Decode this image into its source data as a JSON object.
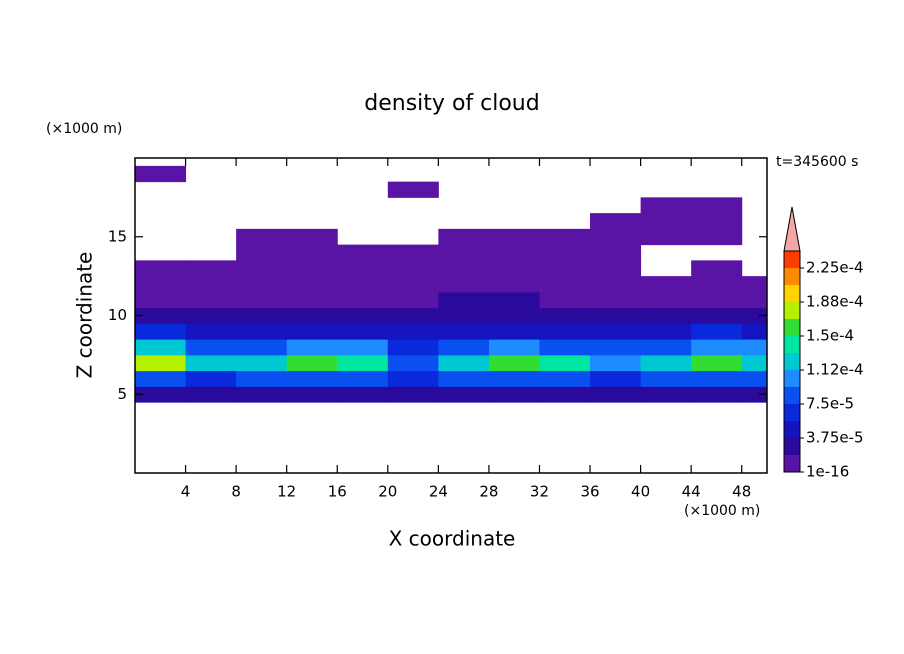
{
  "chart_data": {
    "type": "contour",
    "title": "density of cloud",
    "x_label": "X coordinate",
    "y_label": "Z coordinate",
    "x_unit": "(×1000 m)",
    "y_unit": "(×1000 m)",
    "time_label": "t=345600 s",
    "xlim": [
      0,
      50
    ],
    "ylim": [
      0,
      20
    ],
    "xticks": [
      4,
      8,
      12,
      16,
      20,
      24,
      28,
      32,
      36,
      40,
      44,
      48
    ],
    "yticks": [
      5,
      10,
      15
    ],
    "x": [
      2,
      6,
      10,
      14,
      18,
      22,
      26,
      30,
      34,
      38,
      42,
      46,
      50
    ],
    "z": [
      5,
      6,
      7,
      8,
      9,
      10,
      11,
      12,
      13,
      14,
      15,
      16,
      17,
      18,
      19
    ],
    "field": [
      [
        3e-05,
        3e-05,
        3e-05,
        3e-05,
        3e-05,
        2.5e-05,
        3e-05,
        3e-05,
        3e-05,
        3e-05,
        3e-05,
        3e-05,
        3e-05
      ],
      [
        8e-05,
        7e-05,
        8e-05,
        8e-05,
        8e-05,
        6e-05,
        8e-05,
        8e-05,
        8e-05,
        7e-05,
        8e-05,
        8e-05,
        8e-05
      ],
      [
        0.00017,
        0.00013,
        0.00012,
        0.00016,
        0.00014,
        9e-05,
        0.00013,
        0.00015,
        0.00014,
        0.0001,
        0.00013,
        0.00015,
        0.00013
      ],
      [
        0.00012,
        9e-05,
        9e-05,
        0.0001,
        0.0001,
        7e-05,
        9e-05,
        0.00011,
        9e-05,
        8e-05,
        9e-05,
        0.00011,
        0.0001
      ],
      [
        6e-05,
        5e-05,
        5e-05,
        5e-05,
        5e-05,
        4e-05,
        5e-05,
        5e-05,
        5e-05,
        5e-05,
        5e-05,
        6e-05,
        5e-05
      ],
      [
        3e-05,
        3e-05,
        3e-05,
        2.5e-05,
        2e-05,
        2e-05,
        3e-05,
        3e-05,
        3e-05,
        3e-05,
        3e-05,
        3e-05,
        3e-05
      ],
      [
        1.2e-05,
        1.5e-05,
        1.5e-05,
        1e-05,
        5e-06,
        1e-05,
        2e-05,
        2e-05,
        1.5e-05,
        1e-05,
        1.5e-05,
        1.2e-05,
        1e-05
      ],
      [
        5e-06,
        5e-06,
        5e-06,
        5e-06,
        5e-06,
        5e-06,
        1e-05,
        1e-05,
        8e-06,
        5e-06,
        3e-06,
        3e-06,
        3e-06
      ],
      [
        2e-06,
        2e-06,
        2e-06,
        2e-06,
        2e-06,
        2e-06,
        3e-06,
        3e-06,
        2e-06,
        2e-06,
        null,
        2e-06,
        null
      ],
      [
        null,
        null,
        1e-06,
        1e-06,
        1e-06,
        1e-06,
        1e-06,
        1e-06,
        1e-06,
        1e-06,
        null,
        null,
        null
      ],
      [
        null,
        null,
        1e-06,
        1e-06,
        null,
        null,
        1e-06,
        1e-06,
        1e-06,
        1e-06,
        1e-06,
        1e-06,
        null
      ],
      [
        null,
        null,
        null,
        null,
        null,
        null,
        null,
        null,
        null,
        1e-06,
        1e-06,
        1e-06,
        null
      ],
      [
        null,
        null,
        null,
        null,
        null,
        null,
        null,
        null,
        null,
        null,
        1e-06,
        1e-06,
        null
      ],
      [
        null,
        null,
        null,
        null,
        null,
        1e-06,
        null,
        null,
        null,
        null,
        null,
        null,
        null
      ],
      [
        1e-06,
        null,
        null,
        null,
        null,
        null,
        null,
        null,
        null,
        null,
        null,
        null,
        null
      ]
    ],
    "levels": [
      1e-16,
      1.875e-05,
      3.75e-05,
      5.625e-05,
      7.5e-05,
      9.375e-05,
      0.0001125,
      0.00013125,
      0.00015,
      0.00016875,
      0.0001875,
      0.00020625,
      0.000225,
      0.00024375
    ],
    "colors": [
      "#5a14a5",
      "#2a0a9c",
      "#1414c0",
      "#0a28dc",
      "#0a50f0",
      "#1e8cff",
      "#00c8d2",
      "#00e6a0",
      "#32dc32",
      "#b4f000",
      "#ffd200",
      "#ff8c00",
      "#ff3c00"
    ],
    "extend": "max",
    "extend_color": "#f4a6a6",
    "colorbar_ticks": [
      {
        "value": 1e-16,
        "label": "1e-16"
      },
      {
        "value": 3.75e-05,
        "label": "3.75e-5"
      },
      {
        "value": 7.5e-05,
        "label": "7.5e-5"
      },
      {
        "value": 0.0001125,
        "label": "1.12e-4"
      },
      {
        "value": 0.00015,
        "label": "1.5e-4"
      },
      {
        "value": 0.0001875,
        "label": "1.88e-4"
      },
      {
        "value": 0.000225,
        "label": "2.25e-4"
      }
    ]
  }
}
